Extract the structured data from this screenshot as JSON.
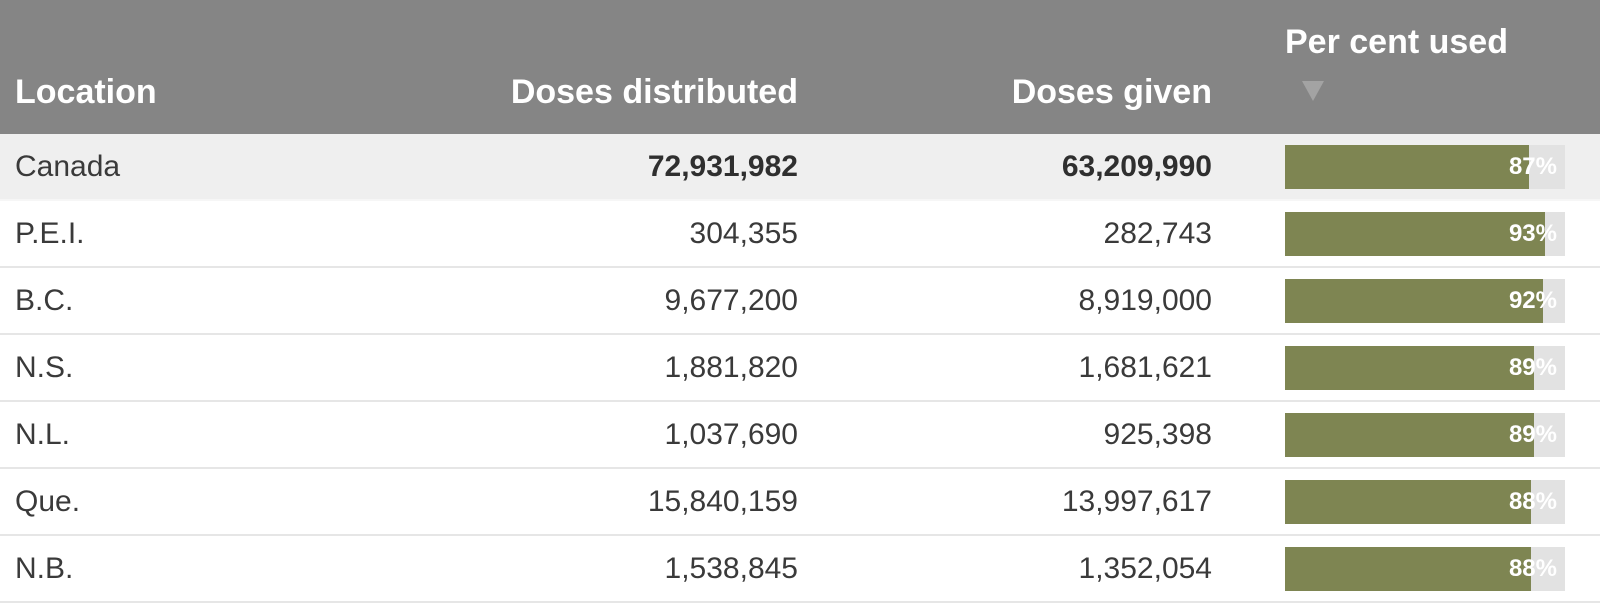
{
  "header": {
    "location": "Location",
    "doses_distributed": "Doses distributed",
    "doses_given": "Doses given",
    "per_cent_used": "Per cent used"
  },
  "rows": [
    {
      "location": "Canada",
      "distributed": "72,931,982",
      "given": "63,209,990",
      "pct_label": "87%",
      "pct": 87
    },
    {
      "location": "P.E.I.",
      "distributed": "304,355",
      "given": "282,743",
      "pct_label": "93%",
      "pct": 93
    },
    {
      "location": "B.C.",
      "distributed": "9,677,200",
      "given": "8,919,000",
      "pct_label": "92%",
      "pct": 92
    },
    {
      "location": "N.S.",
      "distributed": "1,881,820",
      "given": "1,681,621",
      "pct_label": "89%",
      "pct": 89
    },
    {
      "location": "N.L.",
      "distributed": "1,037,690",
      "given": "925,398",
      "pct_label": "89%",
      "pct": 89
    },
    {
      "location": "Que.",
      "distributed": "15,840,159",
      "given": "13,997,617",
      "pct_label": "88%",
      "pct": 88
    },
    {
      "location": "N.B.",
      "distributed": "1,538,845",
      "given": "1,352,054",
      "pct_label": "88%",
      "pct": 88
    }
  ],
  "colors": {
    "header_bg": "#858585",
    "bar_fill": "#7e8552",
    "bar_track": "#e2e2e2",
    "total_row_bg": "#efefef"
  }
}
